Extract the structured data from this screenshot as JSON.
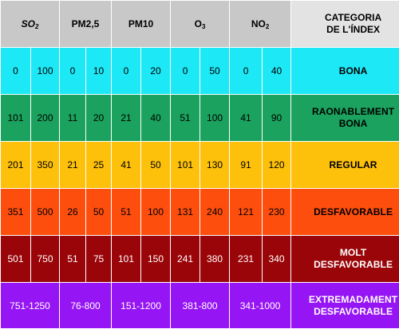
{
  "header": {
    "so2": {
      "base": "SO",
      "sub": "2"
    },
    "pm25": "PM2,5",
    "pm10": "PM10",
    "o3": {
      "base": "O",
      "sub": "3"
    },
    "no2": {
      "base": "NO",
      "sub": "2"
    },
    "category_line1": "CATEGORIA",
    "category_line2": "DE L'ÍNDEX"
  },
  "rows": [
    {
      "bg": "#1de8f6",
      "fg": "#000000",
      "values": [
        "0",
        "100",
        "0",
        "10",
        "0",
        "20",
        "0",
        "50",
        "0",
        "40"
      ],
      "category": [
        "BONA"
      ]
    },
    {
      "bg": "#1aa25e",
      "fg": "#000000",
      "values": [
        "101",
        "200",
        "11",
        "20",
        "21",
        "40",
        "51",
        "100",
        "41",
        "90"
      ],
      "category": [
        "RAONABLEMENT",
        "BONA"
      ]
    },
    {
      "bg": "#fdc10c",
      "fg": "#000000",
      "values": [
        "201",
        "350",
        "21",
        "25",
        "41",
        "50",
        "101",
        "130",
        "91",
        "120"
      ],
      "category": [
        "REGULAR"
      ]
    },
    {
      "bg": "#fd4e0e",
      "fg": "#000000",
      "values": [
        "351",
        "500",
        "26",
        "50",
        "51",
        "100",
        "131",
        "240",
        "121",
        "230"
      ],
      "category": [
        "DESFAVORABLE"
      ]
    },
    {
      "bg": "#9a0509",
      "fg": "#ffffff",
      "values": [
        "501",
        "750",
        "51",
        "75",
        "101",
        "150",
        "241",
        "380",
        "231",
        "340"
      ],
      "category": [
        "MOLT",
        "DESFAVORABLE"
      ]
    },
    {
      "bg": "#9615f4",
      "fg": "#ffffff",
      "ranges": [
        "751-1250",
        "76-800",
        "151-1200",
        "381-800",
        "341-1000"
      ],
      "category": [
        "EXTREMADAMENT",
        "DESFAVORABLE"
      ]
    }
  ]
}
